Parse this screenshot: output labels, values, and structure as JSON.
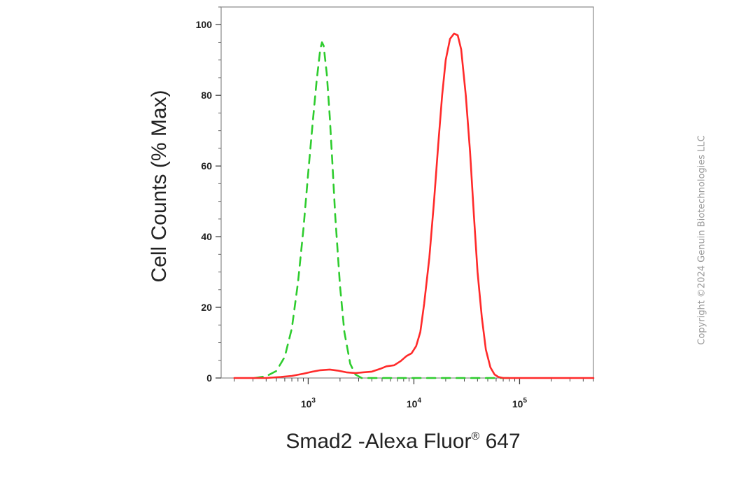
{
  "chart_data": {
    "type": "line",
    "title": "",
    "xlabel": "Smad2 -Alexa Fluor",
    "xlabel_mark": "®",
    "xlabel_suffix": " 647",
    "ylabel": "Cell Counts (% Max)",
    "x_scale": "log",
    "xlim": [
      150,
      500000
    ],
    "ylim": [
      0,
      105
    ],
    "y_ticks": [
      0,
      20,
      40,
      60,
      80,
      100
    ],
    "x_ticks": [
      {
        "value": 1000,
        "base": "10",
        "exp": "3"
      },
      {
        "value": 10000,
        "base": "10",
        "exp": "4"
      },
      {
        "value": 100000,
        "base": "10",
        "exp": "5"
      }
    ],
    "grid": false,
    "series": [
      {
        "color": "#2ecc2e",
        "dash": "dashed",
        "x": [
          310,
          400,
          500,
          600,
          700,
          800,
          900,
          1000,
          1100,
          1200,
          1300,
          1350,
          1400,
          1500,
          1600,
          1700,
          1800,
          2000,
          2200,
          2500,
          2800,
          3200,
          4000,
          10000,
          30000,
          80000
        ],
        "y": [
          0,
          0.5,
          2,
          6,
          14,
          27,
          42,
          58,
          72,
          84,
          93,
          95,
          94,
          86,
          74,
          60,
          46,
          26,
          13,
          4,
          1,
          0,
          0,
          0,
          0,
          0
        ]
      },
      {
        "color": "#ff2a2a",
        "dash": "solid",
        "x": [
          200,
          400,
          550,
          700,
          900,
          1100,
          1300,
          1600,
          1900,
          2300,
          2800,
          3300,
          4000,
          4800,
          5500,
          6500,
          7500,
          8500,
          9500,
          10500,
          11500,
          12500,
          14000,
          15500,
          17000,
          18500,
          20000,
          22000,
          24000,
          26000,
          28000,
          31000,
          34000,
          37000,
          40000,
          44000,
          48000,
          53000,
          58000,
          63000,
          70000,
          80000,
          120000,
          500000
        ],
        "y": [
          0,
          0,
          0.3,
          0.6,
          1.2,
          1.8,
          2.2,
          2.4,
          2.1,
          1.6,
          1.4,
          1.6,
          1.8,
          2.6,
          3.3,
          3.6,
          4.8,
          6.2,
          7.0,
          9.0,
          13,
          21,
          34,
          50,
          66,
          80,
          90,
          96,
          97.5,
          97,
          93,
          80,
          64,
          46,
          30,
          17,
          8,
          3,
          1,
          0.3,
          0,
          0,
          0,
          0
        ]
      }
    ]
  },
  "copyright": "Copyright ©2024 Genuin Biotechnologies LLC"
}
